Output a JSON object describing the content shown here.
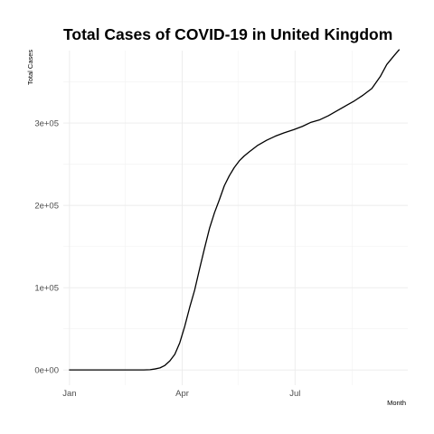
{
  "chart_data": {
    "type": "line",
    "title": "Total Cases of COVID-19 in United Kingdom",
    "xlabel": "Month",
    "ylabel": "Total Cases",
    "x_ticks": [
      {
        "date": "2020-01-01",
        "label": "Jan"
      },
      {
        "date": "2020-04-01",
        "label": "Apr"
      },
      {
        "date": "2020-07-01",
        "label": "Jul"
      }
    ],
    "x_minor_grid": [
      "2020-02-15",
      "2020-05-16",
      "2020-08-16"
    ],
    "y_ticks": [
      {
        "value": 0,
        "label": "0e+00"
      },
      {
        "value": 100000,
        "label": "1e+05"
      },
      {
        "value": 200000,
        "label": "2e+05"
      },
      {
        "value": 300000,
        "label": "3e+05"
      }
    ],
    "xlim": [
      "2019-12-27",
      "2020-09-30"
    ],
    "ylim": [
      -18500,
      388000
    ],
    "grid": true,
    "x": [
      "2020-01-01",
      "2020-02-01",
      "2020-03-01",
      "2020-03-06",
      "2020-03-10",
      "2020-03-14",
      "2020-03-18",
      "2020-03-22",
      "2020-03-26",
      "2020-03-30",
      "2020-04-03",
      "2020-04-07",
      "2020-04-11",
      "2020-04-15",
      "2020-04-19",
      "2020-04-23",
      "2020-04-27",
      "2020-05-01",
      "2020-05-05",
      "2020-05-09",
      "2020-05-13",
      "2020-05-17",
      "2020-05-21",
      "2020-05-25",
      "2020-06-01",
      "2020-06-08",
      "2020-06-15",
      "2020-06-22",
      "2020-06-30",
      "2020-07-07",
      "2020-07-14",
      "2020-07-21",
      "2020-07-28",
      "2020-08-04",
      "2020-08-11",
      "2020-08-18",
      "2020-08-25",
      "2020-09-01",
      "2020-09-08",
      "2020-09-13",
      "2020-09-19",
      "2020-09-23"
    ],
    "series": [
      {
        "values": [
          0,
          0,
          0,
          300,
          1200,
          2500,
          5500,
          11000,
          19000,
          33000,
          53000,
          76000,
          97000,
          123000,
          148000,
          172000,
          191000,
          207000,
          224000,
          236000,
          246000,
          254000,
          260000,
          265000,
          273000,
          279000,
          284000,
          288000,
          292000,
          296000,
          301000,
          304000,
          309000,
          315000,
          321000,
          327000,
          334000,
          342000,
          357000,
          371000,
          382000,
          389000
        ]
      }
    ]
  }
}
